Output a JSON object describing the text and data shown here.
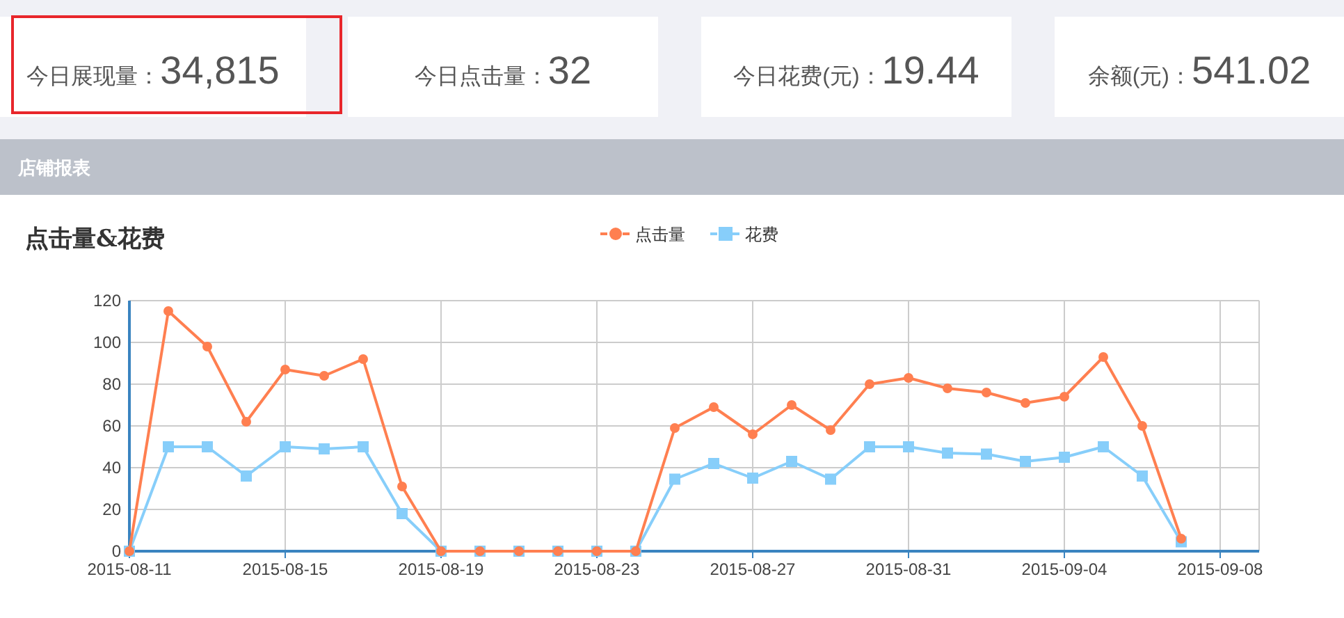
{
  "chart_data": [
    {
      "type": "other",
      "annotations": [
        "今日展现量：",
        "34,815",
        "今日点击量：",
        "32",
        "今日花费(元)：",
        "19.44",
        "余额(元)：",
        "541.02",
        "店铺报表"
      ]
    },
    {
      "type": "line",
      "title": "点击量&花费",
      "legend": "top",
      "grid": true,
      "line_style": "solid",
      "x": [
        "2015-08-11",
        "2015-08-12",
        "2015-08-13",
        "2015-08-14",
        "2015-08-15",
        "2015-08-16",
        "2015-08-17",
        "2015-08-18",
        "2015-08-19",
        "2015-08-20",
        "2015-08-21",
        "2015-08-22",
        "2015-08-23",
        "2015-08-24",
        "2015-08-25",
        "2015-08-26",
        "2015-08-27",
        "2015-08-28",
        "2015-08-29",
        "2015-08-30",
        "2015-08-31",
        "2015-09-01",
        "2015-09-02",
        "2015-09-03",
        "2015-09-04",
        "2015-09-05",
        "2015-09-06",
        "2015-09-07"
      ],
      "xlim": [
        "2015-08-11",
        "2015-09-09"
      ],
      "xticks": [
        "2015-08-11",
        "2015-08-15",
        "2015-08-19",
        "2015-08-23",
        "2015-08-27",
        "2015-08-31",
        "2015-09-04",
        "2015-09-08"
      ],
      "ylim": [
        0,
        120
      ],
      "yticks": [
        0,
        20,
        40,
        60,
        80,
        100,
        120
      ],
      "series": [
        {
          "name": "点击量",
          "color": "#ff7f50",
          "marker": "circle",
          "values": [
            0,
            115,
            98,
            62,
            87,
            84,
            92,
            31,
            0,
            0,
            0,
            0,
            0,
            0,
            59,
            69,
            56,
            70,
            58,
            80,
            83,
            78,
            76,
            71,
            74,
            93,
            60,
            6
          ]
        },
        {
          "name": "花费",
          "color": "#87cefa",
          "marker": "square",
          "values": [
            0,
            50,
            50,
            36,
            50,
            49,
            50,
            18,
            0,
            0,
            0,
            0,
            0,
            0,
            34.5,
            42,
            35,
            43,
            34.5,
            50,
            50,
            47,
            46.5,
            43,
            45,
            50,
            36,
            4.5
          ]
        }
      ]
    }
  ]
}
